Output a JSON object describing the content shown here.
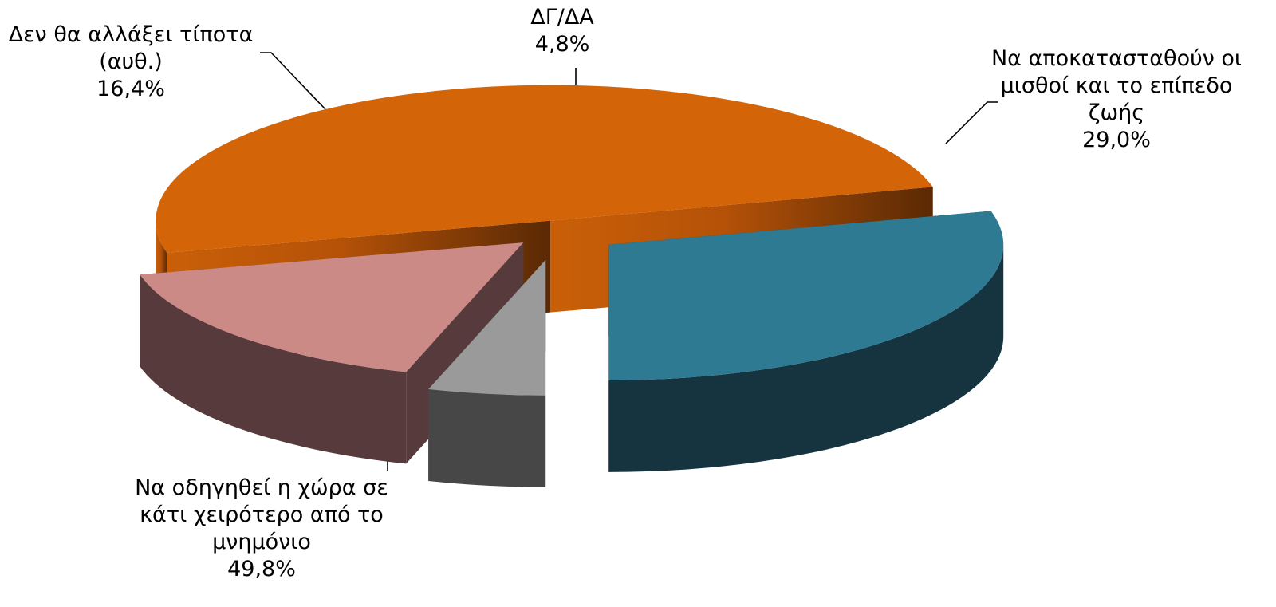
{
  "chart_data": {
    "type": "pie",
    "title": "",
    "style": "3d-exploded",
    "slices": [
      {
        "label_lines": [
          "Να αποκατασταθούν οι",
          "μισθοί και το επίπεδο",
          "ζωής"
        ],
        "value": 29.0,
        "value_label": "29,0%",
        "color": "#2f7a93"
      },
      {
        "label_lines": [
          "Να οδηγηθεί η χώρα σε",
          "κάτι χειρότερο από το",
          "μνημόνιο"
        ],
        "value": 49.8,
        "value_label": "49,8%",
        "color": "#d46408"
      },
      {
        "label_lines": [
          "Δεν θα αλλάξει τίποτα",
          "(αυθ.)"
        ],
        "value": 16.4,
        "value_label": "16,4%",
        "color": "#cc8a87"
      },
      {
        "label_lines": [
          "ΔΓ/ΔΑ"
        ],
        "value": 4.8,
        "value_label": "4,8%",
        "color": "#9a9a9a"
      }
    ]
  }
}
